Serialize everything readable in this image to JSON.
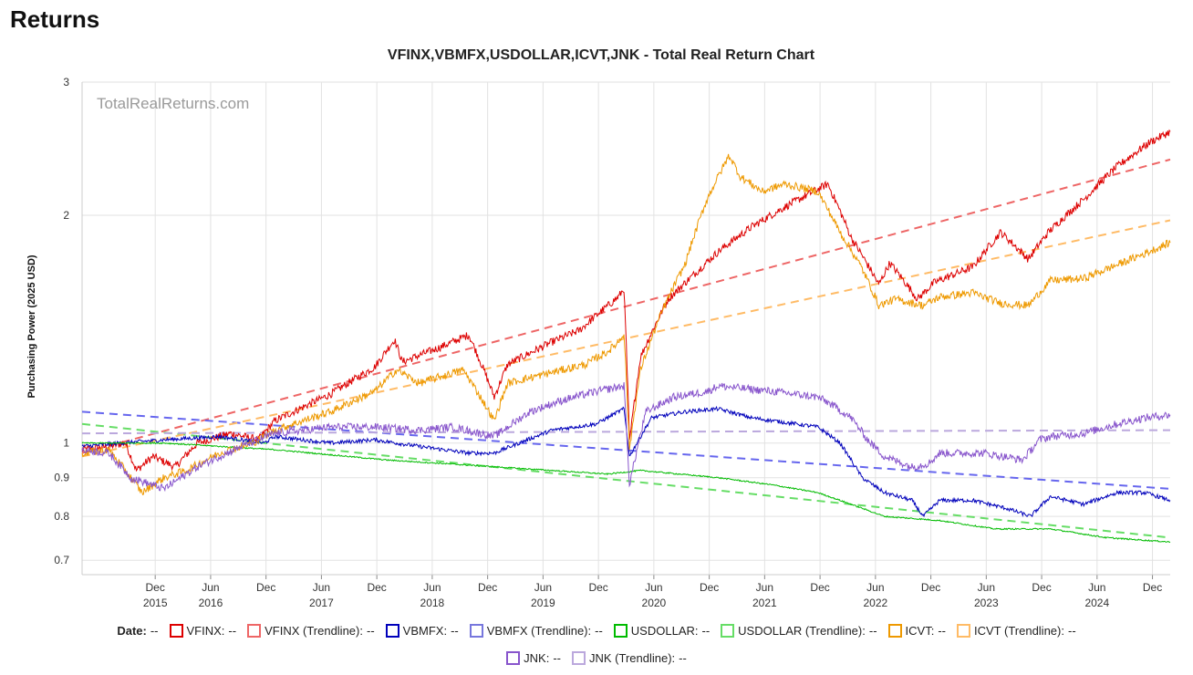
{
  "page": {
    "title": "Returns"
  },
  "chart_data": {
    "type": "line",
    "title": "VFINX,VBMFX,USDOLLAR,ICVT,JNK - Total Real Return Chart",
    "watermark": "TotalRealReturns.com",
    "ylabel": "Purchasing Power (2025 USD)",
    "xlabel": "",
    "yscale": "log",
    "ylim": [
      0.67,
      3.0
    ],
    "xlim": [
      2015.26,
      2025.08
    ],
    "y_ticks": [
      {
        "value": 0.7,
        "label": "0.7"
      },
      {
        "value": 0.8,
        "label": "0.8"
      },
      {
        "value": 0.9,
        "label": "0.9"
      },
      {
        "value": 1,
        "label": "1"
      },
      {
        "value": 2,
        "label": "2"
      },
      {
        "value": 3,
        "label": "3"
      }
    ],
    "x_ticks": [
      {
        "value": 2015.92,
        "month": "Dec",
        "year": "2015"
      },
      {
        "value": 2016.42,
        "month": "Jun",
        "year": "2016"
      },
      {
        "value": 2016.92,
        "month": "Dec",
        "year": ""
      },
      {
        "value": 2017.42,
        "month": "Jun",
        "year": "2017"
      },
      {
        "value": 2017.92,
        "month": "Dec",
        "year": ""
      },
      {
        "value": 2018.42,
        "month": "Jun",
        "year": "2018"
      },
      {
        "value": 2018.92,
        "month": "Dec",
        "year": ""
      },
      {
        "value": 2019.42,
        "month": "Jun",
        "year": "2019"
      },
      {
        "value": 2019.92,
        "month": "Dec",
        "year": ""
      },
      {
        "value": 2020.42,
        "month": "Jun",
        "year": "2020"
      },
      {
        "value": 2020.92,
        "month": "Dec",
        "year": ""
      },
      {
        "value": 2021.42,
        "month": "Jun",
        "year": "2021"
      },
      {
        "value": 2021.92,
        "month": "Dec",
        "year": ""
      },
      {
        "value": 2022.42,
        "month": "Jun",
        "year": "2022"
      },
      {
        "value": 2022.92,
        "month": "Dec",
        "year": ""
      },
      {
        "value": 2023.42,
        "month": "Jun",
        "year": "2023"
      },
      {
        "value": 2023.92,
        "month": "Dec",
        "year": ""
      },
      {
        "value": 2024.42,
        "month": "Jun",
        "year": "2024"
      },
      {
        "value": 2024.92,
        "month": "Dec",
        "year": ""
      }
    ],
    "grid": true,
    "legend_position": "bottom",
    "series": [
      {
        "name": "VFINX",
        "color": "#dd0000",
        "dashed": false,
        "x": [
          2015.26,
          2015.5,
          2015.65,
          2015.75,
          2015.9,
          2016.1,
          2016.3,
          2016.6,
          2016.85,
          2017.0,
          2017.5,
          2017.9,
          2018.08,
          2018.15,
          2018.5,
          2018.75,
          2018.98,
          2019.1,
          2019.5,
          2019.75,
          2020.1,
          2020.15,
          2020.2,
          2020.3,
          2020.55,
          2020.8,
          2021.0,
          2021.3,
          2021.6,
          2021.99,
          2022.2,
          2022.45,
          2022.55,
          2022.8,
          2022.95,
          2023.3,
          2023.55,
          2023.8,
          2023.98,
          2024.3,
          2024.6,
          2024.9,
          2025.08
        ],
        "y": [
          0.98,
          0.99,
          1.0,
          0.92,
          0.96,
          0.93,
          1.0,
          1.03,
          1.01,
          1.07,
          1.16,
          1.26,
          1.37,
          1.28,
          1.34,
          1.39,
          1.15,
          1.27,
          1.36,
          1.41,
          1.56,
          1.6,
          1.0,
          1.3,
          1.55,
          1.68,
          1.79,
          1.93,
          2.05,
          2.2,
          1.87,
          1.62,
          1.73,
          1.55,
          1.63,
          1.71,
          1.9,
          1.75,
          1.9,
          2.1,
          2.32,
          2.5,
          2.58
        ]
      },
      {
        "name": "VFINX (Trendline)",
        "color": "#ee6666",
        "dashed": true,
        "x": [
          2015.26,
          2025.08
        ],
        "y": [
          0.97,
          2.37
        ]
      },
      {
        "name": "VBMFX",
        "color": "#0000bb",
        "dashed": false,
        "x": [
          2015.26,
          2015.6,
          2016.0,
          2016.5,
          2016.9,
          2017.0,
          2017.5,
          2017.9,
          2018.3,
          2018.75,
          2018.98,
          2019.5,
          2019.9,
          2020.15,
          2020.2,
          2020.4,
          2020.7,
          2021.0,
          2021.3,
          2021.9,
          2022.1,
          2022.3,
          2022.5,
          2022.75,
          2022.85,
          2023.0,
          2023.3,
          2023.6,
          2023.82,
          2024.0,
          2024.3,
          2024.6,
          2024.85,
          2025.08
        ],
        "y": [
          0.99,
          1.0,
          1.01,
          1.02,
          1.0,
          1.02,
          1.0,
          1.01,
          0.99,
          0.97,
          0.97,
          1.04,
          1.06,
          1.11,
          0.96,
          1.08,
          1.1,
          1.11,
          1.08,
          1.05,
          1.0,
          0.9,
          0.86,
          0.84,
          0.8,
          0.84,
          0.84,
          0.82,
          0.8,
          0.85,
          0.83,
          0.86,
          0.86,
          0.84
        ]
      },
      {
        "name": "VBMFX (Trendline)",
        "color": "#6666ee",
        "dashed": true,
        "x": [
          2015.26,
          2025.08
        ],
        "y": [
          1.1,
          0.87
        ]
      },
      {
        "name": "USDOLLAR",
        "color": "#00bb00",
        "dashed": false,
        "x": [
          2015.26,
          2015.5,
          2016.0,
          2016.5,
          2017.0,
          2018.0,
          2019.0,
          2020.0,
          2020.3,
          2021.0,
          2021.5,
          2021.9,
          2022.1,
          2022.3,
          2022.5,
          2023.0,
          2023.5,
          2024.0,
          2024.5,
          2025.08
        ],
        "y": [
          1.0,
          1.0,
          1.0,
          0.99,
          0.98,
          0.95,
          0.93,
          0.91,
          0.92,
          0.9,
          0.88,
          0.86,
          0.84,
          0.82,
          0.8,
          0.79,
          0.77,
          0.77,
          0.75,
          0.74
        ]
      },
      {
        "name": "USDOLLAR (Trendline)",
        "color": "#66dd66",
        "dashed": true,
        "x": [
          2015.26,
          2025.08
        ],
        "y": [
          1.06,
          0.75
        ]
      },
      {
        "name": "ICVT",
        "color": "#ee9900",
        "dashed": false,
        "x": [
          2015.26,
          2015.5,
          2015.8,
          2016.0,
          2016.2,
          2016.5,
          2016.8,
          2017.0,
          2017.5,
          2017.9,
          2018.1,
          2018.3,
          2018.7,
          2018.98,
          2019.1,
          2019.5,
          2019.8,
          2020.0,
          2020.1,
          2020.15,
          2020.2,
          2020.3,
          2020.5,
          2020.7,
          2020.9,
          2021.1,
          2021.2,
          2021.4,
          2021.6,
          2021.9,
          2022.1,
          2022.3,
          2022.45,
          2022.6,
          2022.85,
          2023.0,
          2023.3,
          2023.55,
          2023.8,
          2024.0,
          2024.3,
          2024.6,
          2024.85,
          2025.08
        ],
        "y": [
          0.97,
          0.98,
          0.86,
          0.9,
          0.92,
          0.97,
          1.0,
          1.04,
          1.1,
          1.17,
          1.25,
          1.2,
          1.25,
          1.07,
          1.2,
          1.24,
          1.27,
          1.32,
          1.36,
          1.4,
          0.98,
          1.25,
          1.5,
          1.72,
          2.1,
          2.4,
          2.25,
          2.15,
          2.2,
          2.15,
          1.9,
          1.7,
          1.52,
          1.55,
          1.52,
          1.56,
          1.58,
          1.53,
          1.52,
          1.64,
          1.65,
          1.72,
          1.78,
          1.84
        ]
      },
      {
        "name": "ICVT (Trendline)",
        "color": "#ffbb66",
        "dashed": true,
        "x": [
          2015.26,
          2025.08
        ],
        "y": [
          0.96,
          1.97
        ]
      },
      {
        "name": "JNK",
        "color": "#8855cc",
        "dashed": false,
        "x": [
          2015.26,
          2015.5,
          2015.7,
          2016.0,
          2016.3,
          2016.7,
          2017.0,
          2017.5,
          2017.9,
          2018.3,
          2018.6,
          2018.98,
          2019.3,
          2019.6,
          2019.9,
          2020.15,
          2020.2,
          2020.35,
          2020.6,
          2020.9,
          2021.0,
          2021.5,
          2021.9,
          2022.0,
          2022.2,
          2022.35,
          2022.5,
          2022.75,
          2022.9,
          2023.0,
          2023.4,
          2023.75,
          2023.9,
          2024.0,
          2024.3,
          2024.6,
          2024.85,
          2025.08
        ],
        "y": [
          0.98,
          0.97,
          0.9,
          0.87,
          0.93,
          0.99,
          1.03,
          1.05,
          1.05,
          1.04,
          1.05,
          1.02,
          1.1,
          1.14,
          1.17,
          1.19,
          0.88,
          1.1,
          1.15,
          1.17,
          1.19,
          1.17,
          1.15,
          1.13,
          1.08,
          1.01,
          0.96,
          0.93,
          0.94,
          0.97,
          0.97,
          0.95,
          1.01,
          1.02,
          1.03,
          1.06,
          1.08,
          1.09
        ]
      },
      {
        "name": "JNK (Trendline)",
        "color": "#bba8dd",
        "dashed": true,
        "x": [
          2015.26,
          2025.08
        ],
        "y": [
          1.03,
          1.04
        ]
      }
    ]
  },
  "legend": {
    "date_label": "Date:",
    "date_value": "--",
    "rows": [
      [
        {
          "label": "VFINX:",
          "value": "--",
          "color": "#dd0000"
        },
        {
          "label": "VFINX (Trendline):",
          "value": "--",
          "color": "#ee6666"
        },
        {
          "label": "VBMFX:",
          "value": "--",
          "color": "#0000bb"
        },
        {
          "label": "VBMFX (Trendline):",
          "value": "--",
          "color": "#7777dd"
        },
        {
          "label": "USDOLLAR:",
          "value": "--",
          "color": "#00bb00"
        },
        {
          "label": "USDOLLAR (Trendline):",
          "value": "--",
          "color": "#66dd66"
        },
        {
          "label": "ICVT:",
          "value": "--",
          "color": "#ee9900"
        },
        {
          "label": "ICVT (Trendline):",
          "value": "--",
          "color": "#ffbb66"
        }
      ],
      [
        {
          "label": "JNK:",
          "value": "--",
          "color": "#8855cc"
        },
        {
          "label": "JNK (Trendline):",
          "value": "--",
          "color": "#bba8dd"
        }
      ]
    ]
  }
}
